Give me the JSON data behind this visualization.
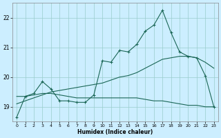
{
  "xlabel": "Humidex (Indice chaleur)",
  "bg_color": "#cceeff",
  "grid_color": "#99cccc",
  "line_color": "#1a6655",
  "xlim": [
    -0.5,
    23.5
  ],
  "ylim": [
    18.5,
    22.5
  ],
  "yticks": [
    19,
    20,
    21,
    22
  ],
  "xticks": [
    0,
    1,
    2,
    3,
    4,
    5,
    6,
    7,
    8,
    9,
    10,
    11,
    12,
    13,
    14,
    15,
    16,
    17,
    18,
    19,
    20,
    21,
    22,
    23
  ],
  "line1_x": [
    0,
    1,
    2,
    3,
    4,
    5,
    6,
    7,
    8,
    9,
    10,
    11,
    12,
    13,
    14,
    15,
    16,
    17,
    18,
    19,
    20,
    21,
    22,
    23
  ],
  "line1_y": [
    18.65,
    19.35,
    19.45,
    19.85,
    19.6,
    19.2,
    19.2,
    19.15,
    19.15,
    19.4,
    20.55,
    20.5,
    20.9,
    20.85,
    21.1,
    21.55,
    21.75,
    22.25,
    21.5,
    20.85,
    20.7,
    20.65,
    20.05,
    19.0
  ],
  "line2_x": [
    0,
    1,
    2,
    3,
    4,
    5,
    6,
    7,
    8,
    9,
    10,
    11,
    12,
    13,
    14,
    15,
    16,
    17,
    18,
    19,
    20,
    21,
    22,
    23
  ],
  "line2_y": [
    19.1,
    19.2,
    19.3,
    19.4,
    19.5,
    19.55,
    19.6,
    19.65,
    19.7,
    19.75,
    19.8,
    19.9,
    20.0,
    20.05,
    20.15,
    20.3,
    20.45,
    20.6,
    20.65,
    20.7,
    20.7,
    20.65,
    20.5,
    20.3
  ],
  "line3_x": [
    0,
    1,
    2,
    3,
    4,
    5,
    6,
    7,
    8,
    9,
    10,
    11,
    12,
    13,
    14,
    15,
    16,
    17,
    18,
    19,
    20,
    21,
    22,
    23
  ],
  "line3_y": [
    19.35,
    19.35,
    19.4,
    19.45,
    19.45,
    19.4,
    19.35,
    19.3,
    19.3,
    19.3,
    19.3,
    19.3,
    19.3,
    19.3,
    19.3,
    19.25,
    19.2,
    19.2,
    19.15,
    19.1,
    19.05,
    19.05,
    19.0,
    19.0
  ]
}
